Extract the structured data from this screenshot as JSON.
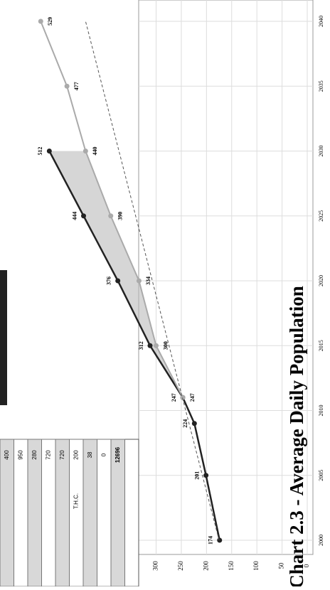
{
  "chart_data": {
    "type": "line",
    "title": "Chart 2.3 - Average Daily Population",
    "series": [
      {
        "color": "#222222",
        "x": [
          2000,
          2005,
          2009,
          2011,
          2015,
          2020,
          2025,
          2030
        ],
        "values": [
          174,
          201,
          224,
          247,
          312,
          376,
          444,
          512
        ]
      },
      {
        "color": "#aaaaaa",
        "x": [
          2011,
          2015,
          2020,
          2025,
          2030,
          2035,
          2040
        ],
        "values": [
          247,
          300,
          334,
          390,
          440,
          477,
          529
        ]
      },
      {
        "color": "#555555",
        "dashed": true,
        "x": [
          2000,
          2040
        ],
        "values": [
          175,
          440
        ]
      }
    ],
    "xlim": [
      2000,
      2040
    ],
    "xticks": [
      2000,
      2005,
      2010,
      2015,
      2020,
      2025,
      2030,
      2035,
      2040
    ],
    "ylim": [
      0,
      600
    ],
    "yticks": [
      0,
      50,
      100,
      150,
      200,
      250,
      300
    ],
    "grid": true
  },
  "table": {
    "cells": [
      "400",
      "950",
      "280",
      "720",
      "720",
      "200",
      "T.H.C.",
      "38",
      "0",
      "12696"
    ]
  }
}
